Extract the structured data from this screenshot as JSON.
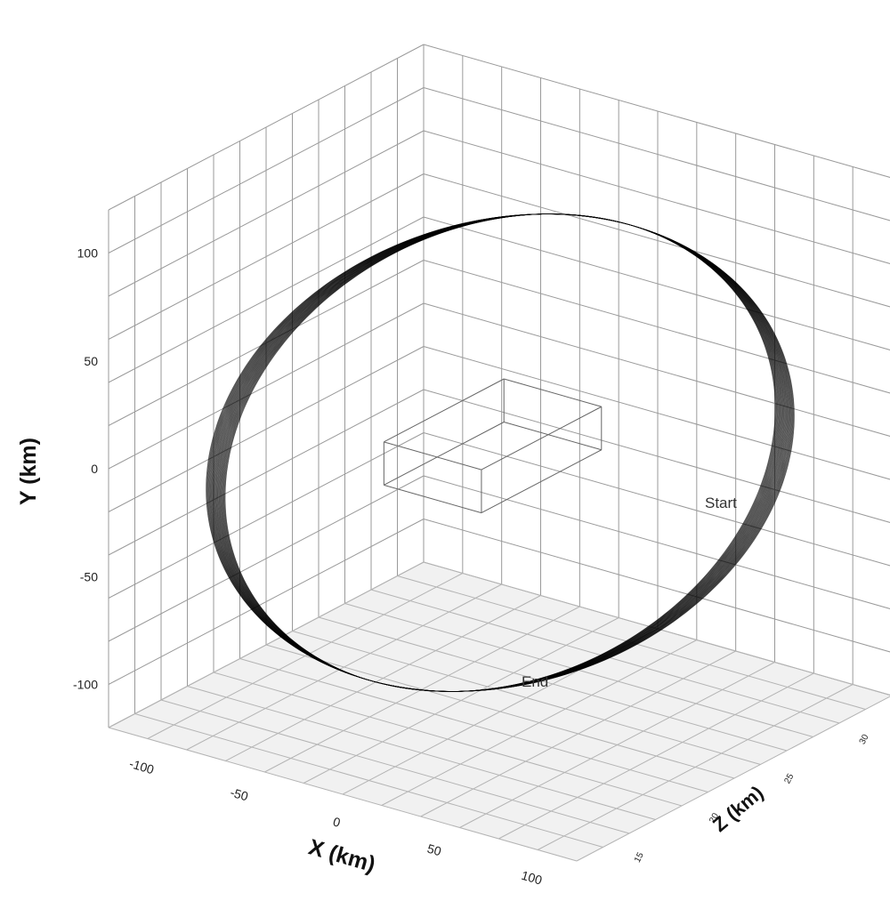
{
  "chart_data": {
    "type": "scatter",
    "dimensions": 3,
    "xlabel": "X (km)",
    "ylabel": "Y (km)",
    "zlabel": "Z (km)",
    "x_ticks": [
      "-100",
      "-50",
      "0",
      "50",
      "100"
    ],
    "y_ticks": [
      "100",
      "50",
      "0",
      "-50",
      "-100"
    ],
    "z_ticks": [
      "15",
      "20",
      "25",
      "30"
    ],
    "xlim": [
      -120,
      120
    ],
    "ylim": [
      -120,
      120
    ],
    "zlim": [
      12,
      33
    ],
    "grid": true,
    "series": [
      {
        "description_note": "",
        "ring_center": {
          "x": 0,
          "y": 0,
          "z": 22
        },
        "ring_radius_km": 100,
        "z_range": [
          15,
          30
        ],
        "band_passes": 60
      }
    ],
    "annotations": [
      {
        "text": "Start",
        "x": 100,
        "y": -30,
        "z": 28
      },
      {
        "text": "End",
        "x": -20,
        "y": -100,
        "z": 15
      }
    ],
    "inner_box": {
      "x": [
        -25,
        25
      ],
      "y": [
        -5,
        15
      ],
      "z": [
        18,
        26
      ]
    }
  }
}
